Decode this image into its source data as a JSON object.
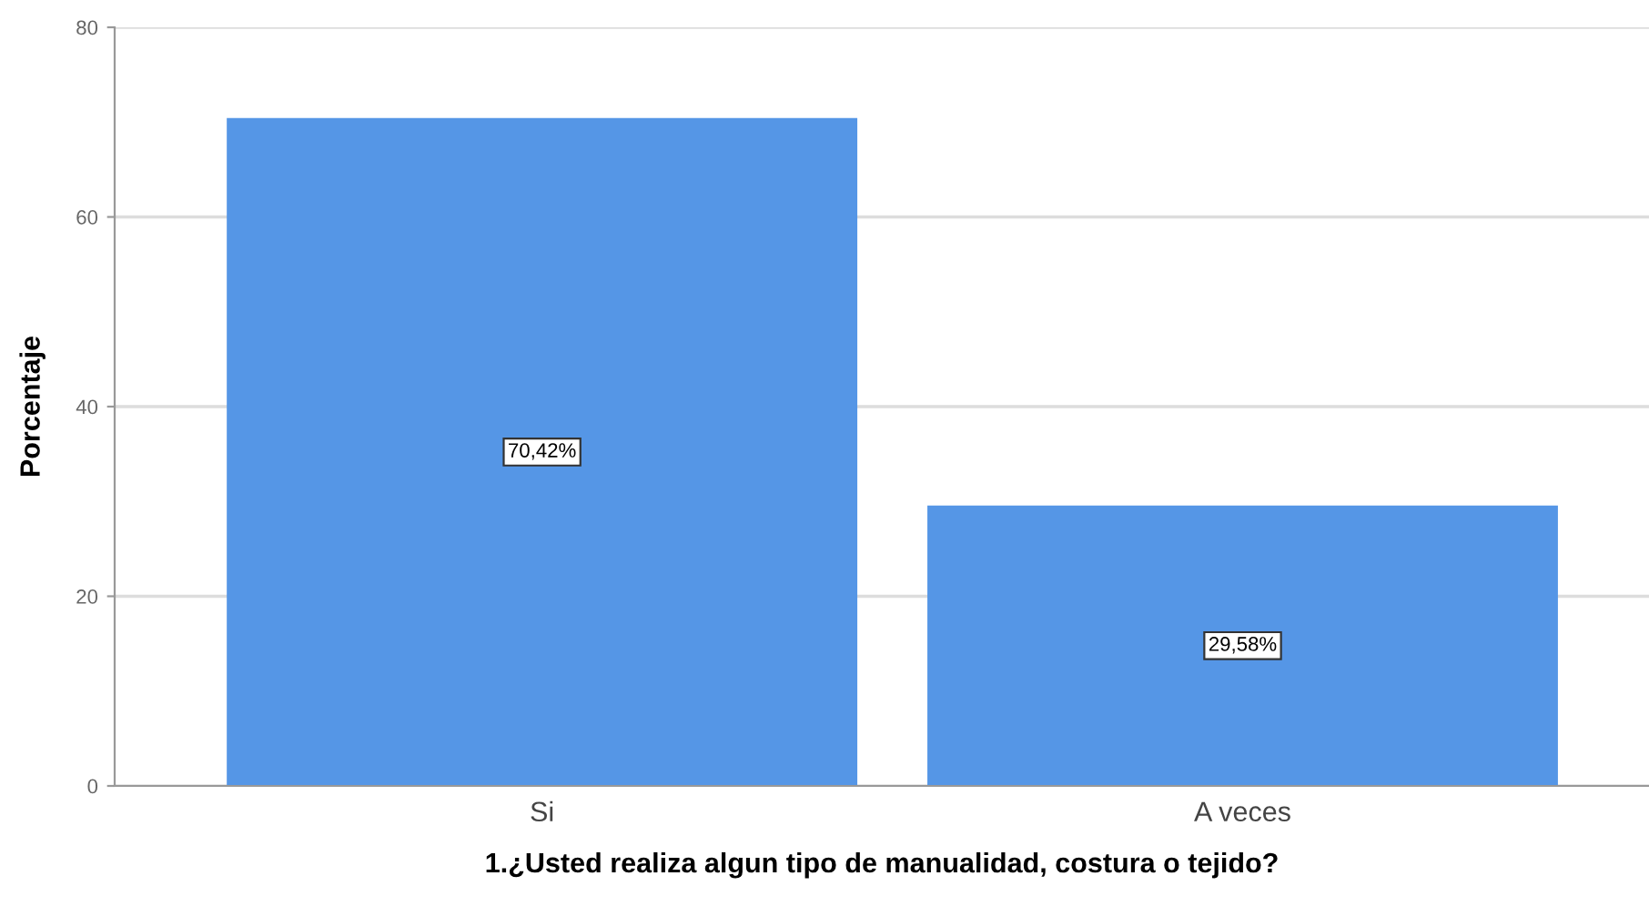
{
  "chart_data": {
    "type": "bar",
    "xlabel": "1.¿Usted realiza algun tipo de manualidad, costura o tejido?",
    "ylabel": "Porcentaje",
    "categories": [
      "Si",
      "A veces"
    ],
    "values": [
      70.42,
      29.58
    ],
    "value_labels": [
      "70,42%",
      "29,58%"
    ],
    "color": "#5596e6",
    "ylim": [
      0,
      80
    ],
    "yticks": [
      0,
      20,
      40,
      60,
      80
    ],
    "grid": "y"
  }
}
